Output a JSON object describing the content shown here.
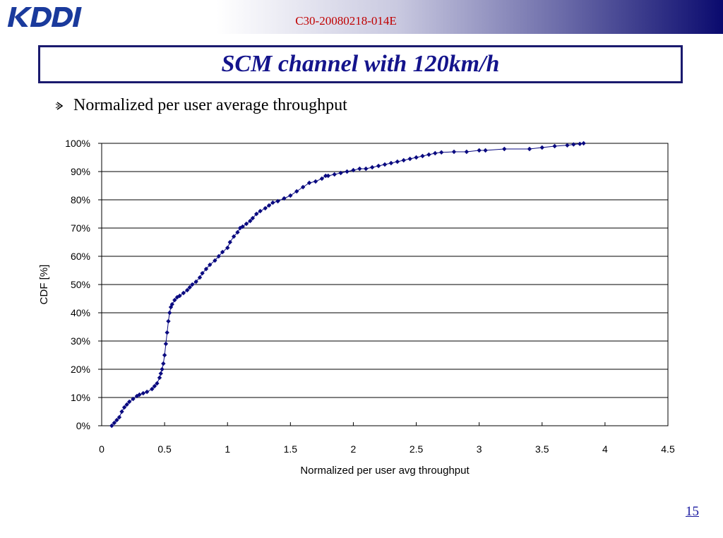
{
  "header": {
    "doc_id": "C30-20080218-014E",
    "logo_text": "KDDI",
    "logo_icon": "kddi-logo-icon"
  },
  "slide": {
    "title": "SCM channel with 120km/h",
    "bullet": "Normalized per user average throughput",
    "bullet_icon": "arrow-bullet-icon",
    "page_number": "15"
  },
  "colors": {
    "title": "#14148c",
    "doc_id": "#c00000",
    "series": "#0a0a80"
  },
  "chart_data": {
    "type": "line",
    "title": "",
    "xlabel": "Normalized per user avg throughput",
    "ylabel": "CDF [%]",
    "xlim": [
      0,
      4.5
    ],
    "ylim": [
      0,
      100
    ],
    "xticks": [
      "0",
      "0.5",
      "1",
      "1.5",
      "2",
      "2.5",
      "3",
      "3.5",
      "4",
      "4.5"
    ],
    "yticks": [
      "0%",
      "10%",
      "20%",
      "30%",
      "40%",
      "50%",
      "60%",
      "70%",
      "80%",
      "90%",
      "100%"
    ],
    "grid": "horizontal",
    "legend": "none",
    "series": [
      {
        "x": [
          0.08,
          0.1,
          0.12,
          0.14,
          0.16,
          0.18,
          0.2,
          0.22,
          0.25,
          0.28,
          0.3,
          0.33,
          0.36,
          0.4,
          0.42,
          0.44,
          0.46,
          0.47,
          0.48,
          0.49,
          0.5,
          0.51,
          0.52,
          0.53,
          0.54,
          0.55,
          0.56,
          0.58,
          0.6,
          0.62,
          0.65,
          0.68,
          0.7,
          0.72,
          0.75,
          0.78,
          0.8,
          0.83,
          0.86,
          0.9,
          0.93,
          0.96,
          1.0,
          1.02,
          1.05,
          1.08,
          1.1,
          1.12,
          1.15,
          1.18,
          1.2,
          1.23,
          1.26,
          1.3,
          1.33,
          1.36,
          1.4,
          1.45,
          1.5,
          1.55,
          1.6,
          1.65,
          1.7,
          1.75,
          1.78,
          1.8,
          1.85,
          1.9,
          1.95,
          2.0,
          2.05,
          2.1,
          2.15,
          2.2,
          2.25,
          2.3,
          2.35,
          2.4,
          2.45,
          2.5,
          2.55,
          2.6,
          2.65,
          2.7,
          2.8,
          2.9,
          3.0,
          3.05,
          3.2,
          3.4,
          3.5,
          3.6,
          3.7,
          3.75,
          3.8,
          3.83
        ],
        "y": [
          0,
          1,
          2,
          3,
          5,
          6.5,
          7.5,
          8.5,
          9.5,
          10.5,
          11,
          11.5,
          12,
          13,
          14,
          15,
          17,
          18.5,
          20,
          22,
          25,
          29,
          33,
          37,
          40,
          42,
          43,
          44.5,
          45.5,
          46,
          47,
          48,
          49,
          50,
          51,
          52.5,
          54,
          55.5,
          57,
          58.5,
          60,
          61.5,
          63,
          65,
          67,
          68.5,
          70,
          70.5,
          71.5,
          72.5,
          73.5,
          75,
          76,
          77,
          78,
          79,
          79.5,
          80.5,
          81.5,
          83,
          84.5,
          86,
          86.5,
          87.5,
          88.5,
          88.5,
          89,
          89.5,
          90,
          90.5,
          91,
          91,
          91.5,
          92,
          92.5,
          93,
          93.5,
          94,
          94.5,
          95,
          95.5,
          96,
          96.5,
          96.8,
          97,
          97,
          97.5,
          97.5,
          98,
          98,
          98.5,
          99,
          99.3,
          99.6,
          99.8,
          100
        ]
      }
    ]
  }
}
